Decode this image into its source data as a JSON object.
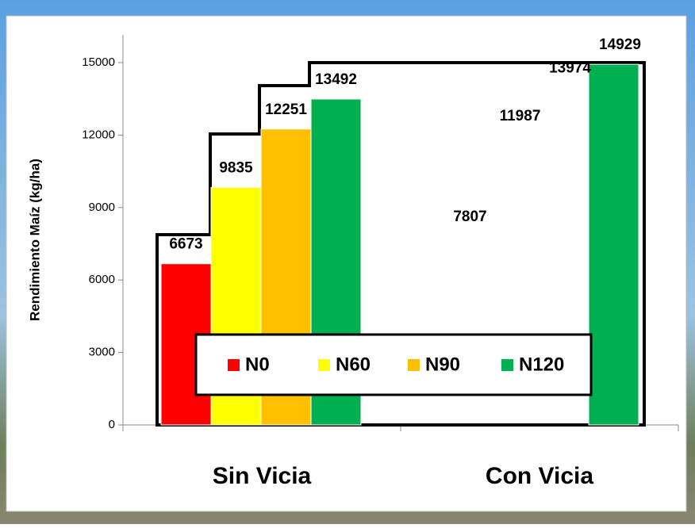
{
  "chart_data": {
    "type": "bar",
    "categories": [
      "Sin Vicia",
      "Con Vicia"
    ],
    "y_axis_label": "Rendimiento Maíz (kg/ha)",
    "series": [
      {
        "name": "N0",
        "color": "#ff0000",
        "values": [
          6673,
          7807
        ]
      },
      {
        "name": "N60",
        "color": "#ffff00",
        "values": [
          9835,
          11987
        ]
      },
      {
        "name": "N90",
        "color": "#ffc000",
        "values": [
          12251,
          13974
        ]
      },
      {
        "name": "N120",
        "color": "#00b050",
        "values": [
          13492,
          14929
        ]
      }
    ],
    "ylim": [
      0,
      15000
    ],
    "yticks": [
      0,
      3000,
      6000,
      9000,
      12000,
      15000
    ]
  }
}
